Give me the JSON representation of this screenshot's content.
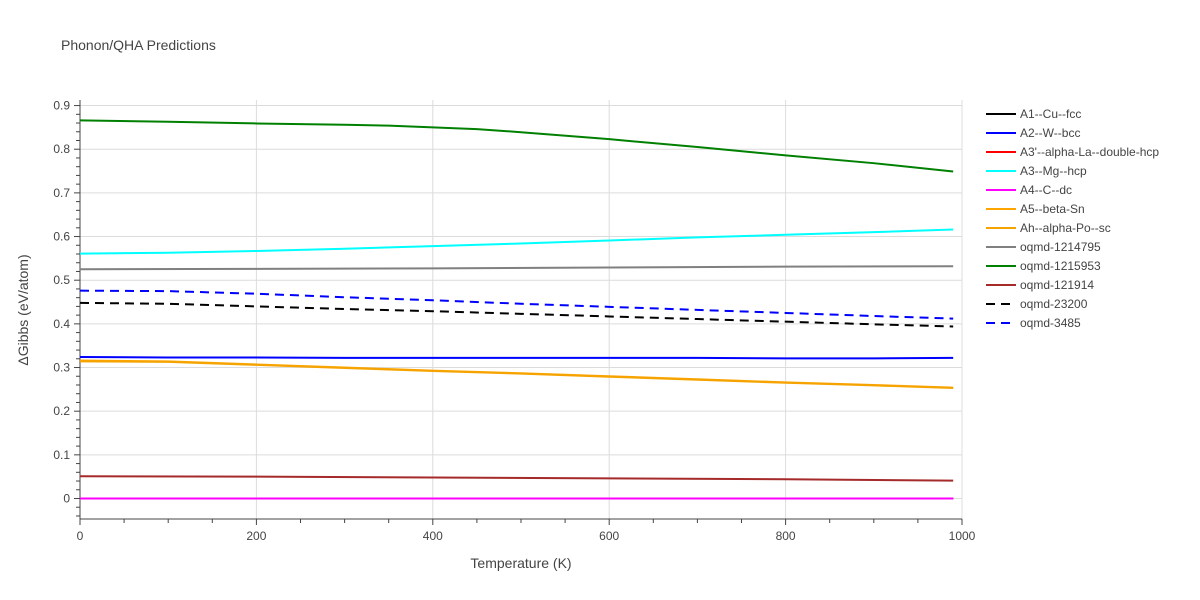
{
  "chart_data": {
    "type": "line",
    "title": "Phonon/QHA Predictions",
    "xlabel": "Temperature (K)",
    "ylabel": "ΔGibbs (eV/atom)",
    "xlim": [
      0,
      1000
    ],
    "ylim": [
      -0.05,
      0.91
    ],
    "xticks": [
      0,
      200,
      400,
      600,
      800,
      1000
    ],
    "yticks": [
      0,
      0.1,
      0.2,
      0.3,
      0.4,
      0.5,
      0.6,
      0.7,
      0.8,
      0.9
    ],
    "grid": true,
    "legend_position": "right",
    "series": [
      {
        "name": "A1--Cu--fcc",
        "color": "#000000",
        "dash": "solid",
        "x": [
          0,
          990
        ],
        "y": [
          0.0,
          0.0
        ]
      },
      {
        "name": "A2--W--bcc",
        "color": "#0000ff",
        "dash": "solid",
        "x": [
          0,
          100,
          200,
          300,
          400,
          500,
          600,
          700,
          800,
          900,
          990
        ],
        "y": [
          0.324,
          0.323,
          0.323,
          0.322,
          0.322,
          0.322,
          0.322,
          0.322,
          0.321,
          0.321,
          0.322
        ]
      },
      {
        "name": "A3'--alpha-La--double-hcp",
        "color": "#ff0000",
        "dash": "solid",
        "x": [
          0,
          990
        ],
        "y": [
          0.0,
          0.0
        ]
      },
      {
        "name": "A3--Mg--hcp",
        "color": "#00ffff",
        "dash": "solid",
        "x": [
          0,
          100,
          200,
          300,
          400,
          500,
          600,
          700,
          800,
          900,
          990
        ],
        "y": [
          0.561,
          0.563,
          0.567,
          0.572,
          0.578,
          0.584,
          0.591,
          0.598,
          0.604,
          0.61,
          0.616
        ]
      },
      {
        "name": "A4--C--dc",
        "color": "#ff00ff",
        "dash": "solid",
        "x": [
          0,
          990
        ],
        "y": [
          0.0,
          0.0
        ]
      },
      {
        "name": "A5--beta-Sn",
        "color": "#ffa500",
        "dash": "solid",
        "x": [
          0,
          100,
          200,
          300,
          400,
          500,
          600,
          700,
          800,
          900,
          990
        ],
        "y": [
          0.316,
          0.314,
          0.307,
          0.3,
          0.293,
          0.287,
          0.28,
          0.273,
          0.266,
          0.26,
          0.254
        ]
      },
      {
        "name": "Ah--alpha-Po--sc",
        "color": "#f5a300",
        "dash": "solid",
        "x": [
          0,
          100,
          200,
          300,
          400,
          500,
          600,
          700,
          800,
          900,
          990
        ],
        "y": [
          0.314,
          0.313,
          0.306,
          0.299,
          0.292,
          0.286,
          0.279,
          0.272,
          0.265,
          0.259,
          0.253
        ]
      },
      {
        "name": "oqmd-1214795",
        "color": "#808080",
        "dash": "solid",
        "x": [
          0,
          200,
          400,
          600,
          800,
          990
        ],
        "y": [
          0.525,
          0.526,
          0.527,
          0.529,
          0.531,
          0.532
        ]
      },
      {
        "name": "oqmd-1215953",
        "color": "#008000",
        "dash": "solid",
        "x": [
          0,
          100,
          200,
          300,
          350,
          400,
          450,
          500,
          600,
          700,
          800,
          900,
          990
        ],
        "y": [
          0.866,
          0.863,
          0.859,
          0.856,
          0.854,
          0.85,
          0.846,
          0.839,
          0.823,
          0.805,
          0.786,
          0.768,
          0.749
        ]
      },
      {
        "name": "oqmd-121914",
        "color": "#a52a2a",
        "dash": "solid",
        "x": [
          0,
          200,
          400,
          600,
          800,
          990
        ],
        "y": [
          0.051,
          0.05,
          0.048,
          0.046,
          0.044,
          0.041
        ]
      },
      {
        "name": "oqmd-23200",
        "color": "#000000",
        "dash": "dash",
        "x": [
          0,
          100,
          200,
          300,
          400,
          500,
          600,
          700,
          800,
          900,
          990
        ],
        "y": [
          0.448,
          0.446,
          0.44,
          0.434,
          0.429,
          0.423,
          0.417,
          0.411,
          0.405,
          0.399,
          0.394
        ]
      },
      {
        "name": "oqmd-3485",
        "color": "#0000ff",
        "dash": "dash",
        "x": [
          0,
          100,
          200,
          300,
          400,
          500,
          600,
          700,
          800,
          900,
          990
        ],
        "y": [
          0.476,
          0.475,
          0.469,
          0.461,
          0.454,
          0.446,
          0.439,
          0.432,
          0.425,
          0.418,
          0.412
        ]
      }
    ]
  }
}
